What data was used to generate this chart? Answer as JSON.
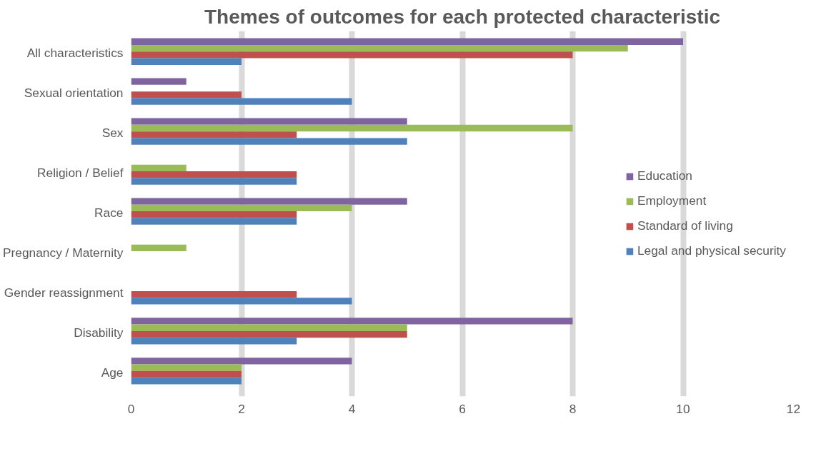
{
  "chart_data": {
    "type": "bar",
    "orientation": "horizontal",
    "title": "Themes of outcomes for each protected characteristic",
    "categories": [
      "All characteristics",
      "Sexual orientation",
      "Sex",
      "Religion / Belief",
      "Race",
      "Pregnancy / Maternity",
      "Gender reassignment",
      "Disability",
      "Age"
    ],
    "series": [
      {
        "name": "Education",
        "color": "#8064a2",
        "values": [
          10,
          1,
          5,
          null,
          5,
          null,
          null,
          8,
          4
        ]
      },
      {
        "name": "Employment",
        "color": "#9bbb59",
        "values": [
          9,
          null,
          8,
          1,
          4,
          1,
          null,
          5,
          2
        ]
      },
      {
        "name": "Standard of living",
        "color": "#c0504d",
        "values": [
          8,
          2,
          3,
          3,
          3,
          null,
          3,
          5,
          2
        ]
      },
      {
        "name": "Legal and physical security",
        "color": "#4f81bd",
        "values": [
          2,
          4,
          5,
          3,
          3,
          null,
          4,
          3,
          2
        ]
      }
    ],
    "xlim": [
      0,
      12
    ],
    "xticks": [
      0,
      2,
      4,
      6,
      8,
      10,
      12
    ],
    "grid": "x",
    "legend": "right"
  }
}
